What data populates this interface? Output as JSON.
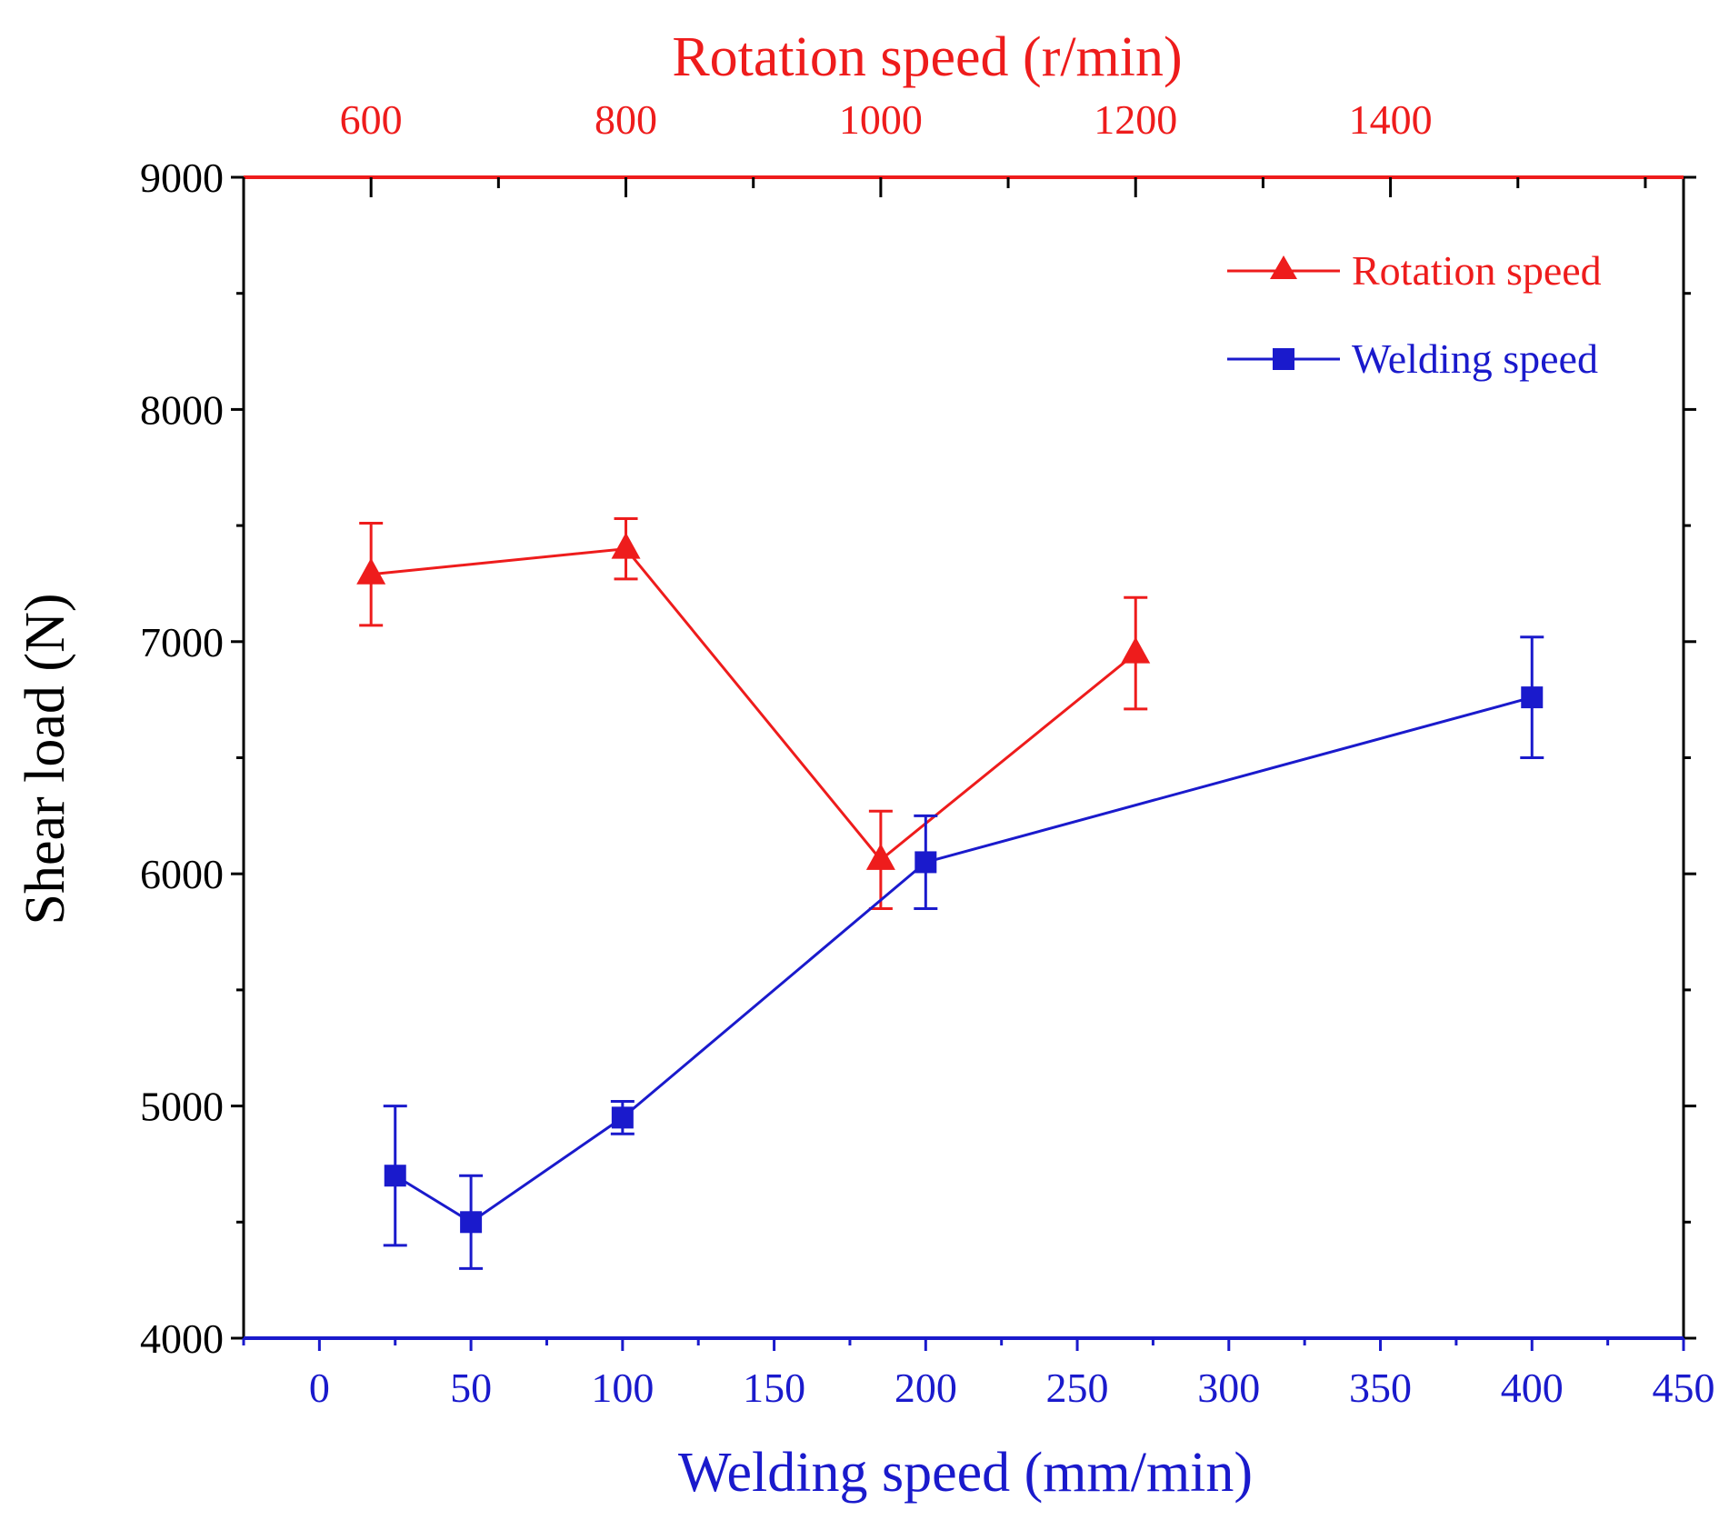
{
  "chart_data": {
    "type": "line",
    "ylabel": "Shear load (N)",
    "ylim": [
      4000,
      9000
    ],
    "yticks": [
      4000,
      5000,
      6000,
      7000,
      8000,
      9000
    ],
    "x_bottom": {
      "label": "Welding speed (mm/min)",
      "range": [
        -25,
        450
      ],
      "ticks": [
        0,
        50,
        100,
        150,
        200,
        250,
        300,
        350,
        400,
        450
      ],
      "color": "#1a1acc"
    },
    "x_top": {
      "label": "Rotation speed (r/min)",
      "range": [
        500,
        1630
      ],
      "ticks": [
        600,
        800,
        1000,
        1200,
        1400
      ],
      "color": "#ee1c1c"
    },
    "legend_position": "top-right",
    "series": [
      {
        "name": "Rotation speed",
        "axis": "top",
        "marker": "triangle",
        "color": "#ee1c1c",
        "points": [
          {
            "x": 600,
            "y": 7290,
            "err": 220
          },
          {
            "x": 800,
            "y": 7400,
            "err": 130
          },
          {
            "x": 1000,
            "y": 6060,
            "err": 210
          },
          {
            "x": 1200,
            "y": 6950,
            "err": 240
          }
        ]
      },
      {
        "name": "Welding speed",
        "axis": "bottom",
        "marker": "square",
        "color": "#1a1acc",
        "points": [
          {
            "x": 25,
            "y": 4700,
            "err": 300
          },
          {
            "x": 50,
            "y": 4500,
            "err": 200
          },
          {
            "x": 100,
            "y": 4950,
            "err": 70
          },
          {
            "x": 200,
            "y": 6050,
            "err": 200
          },
          {
            "x": 400,
            "y": 6760,
            "err": 260
          }
        ]
      }
    ]
  }
}
